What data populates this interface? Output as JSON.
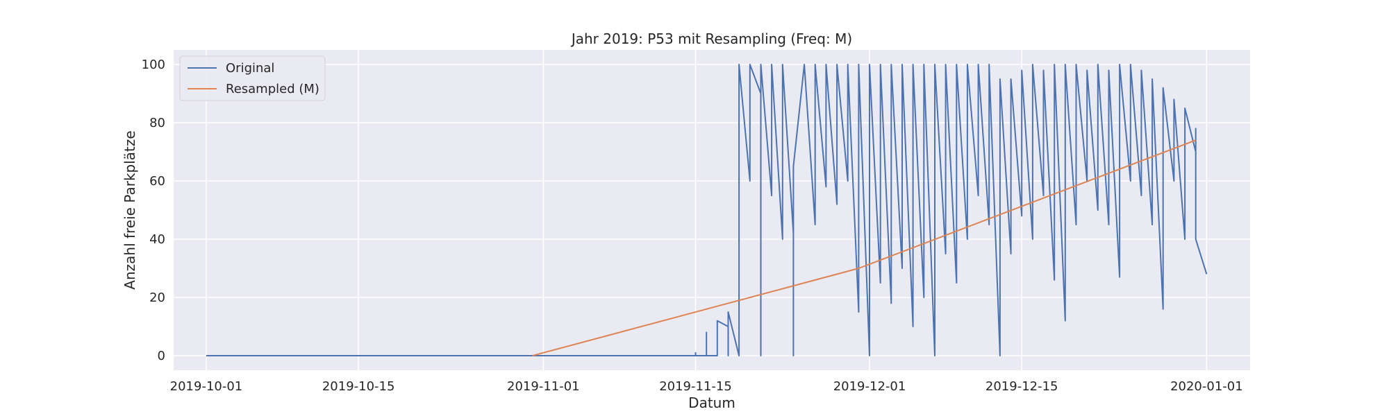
{
  "chart_data": {
    "type": "line",
    "title": "Jahr 2019: P53 mit Resampling (Freq: M)",
    "xlabel": "Datum",
    "ylabel": "Anzahl freie Parkplätze",
    "xlim": [
      "2019-09-28",
      "2020-01-05"
    ],
    "ylim": [
      -5,
      105
    ],
    "x_ticks": [
      "2019-10-01",
      "2019-10-15",
      "2019-11-01",
      "2019-11-15",
      "2019-12-01",
      "2019-12-15",
      "2020-01-01"
    ],
    "y_ticks": [
      0,
      20,
      40,
      60,
      80,
      100
    ],
    "grid": true,
    "legend": "top-left",
    "series": [
      {
        "name": "Original",
        "color": "#4c72b0",
        "points": [
          [
            "2019-10-01",
            0
          ],
          [
            "2019-11-15",
            0
          ],
          [
            "2019-11-15",
            1
          ],
          [
            "2019-11-15",
            0
          ],
          [
            "2019-11-16",
            0
          ],
          [
            "2019-11-16",
            8
          ],
          [
            "2019-11-16",
            0
          ],
          [
            "2019-11-17",
            0
          ],
          [
            "2019-11-17",
            12
          ],
          [
            "2019-11-18",
            10
          ],
          [
            "2019-11-18",
            0
          ],
          [
            "2019-11-18",
            15
          ],
          [
            "2019-11-19",
            0
          ],
          [
            "2019-11-19",
            72
          ],
          [
            "2019-11-19",
            58
          ],
          [
            "2019-11-19",
            100
          ],
          [
            "2019-11-20",
            60
          ],
          [
            "2019-11-20",
            100
          ],
          [
            "2019-11-21",
            90
          ],
          [
            "2019-11-21",
            0
          ],
          [
            "2019-11-21",
            100
          ],
          [
            "2019-11-22",
            55
          ],
          [
            "2019-11-22",
            100
          ],
          [
            "2019-11-23",
            40
          ],
          [
            "2019-11-23",
            100
          ],
          [
            "2019-11-24",
            42
          ],
          [
            "2019-11-24",
            0
          ],
          [
            "2019-11-24",
            65
          ],
          [
            "2019-11-25",
            100
          ],
          [
            "2019-11-26",
            45
          ],
          [
            "2019-11-26",
            100
          ],
          [
            "2019-11-27",
            58
          ],
          [
            "2019-11-27",
            100
          ],
          [
            "2019-11-28",
            52
          ],
          [
            "2019-11-28",
            100
          ],
          [
            "2019-11-29",
            60
          ],
          [
            "2019-11-29",
            100
          ],
          [
            "2019-11-30",
            15
          ],
          [
            "2019-11-30",
            100
          ],
          [
            "2019-12-01",
            0
          ],
          [
            "2019-12-01",
            100
          ],
          [
            "2019-12-02",
            25
          ],
          [
            "2019-12-02",
            100
          ],
          [
            "2019-12-03",
            18
          ],
          [
            "2019-12-03",
            100
          ],
          [
            "2019-12-04",
            30
          ],
          [
            "2019-12-04",
            100
          ],
          [
            "2019-12-05",
            10
          ],
          [
            "2019-12-05",
            100
          ],
          [
            "2019-12-06",
            20
          ],
          [
            "2019-12-06",
            100
          ],
          [
            "2019-12-07",
            0
          ],
          [
            "2019-12-07",
            100
          ],
          [
            "2019-12-08",
            35
          ],
          [
            "2019-12-08",
            100
          ],
          [
            "2019-12-09",
            25
          ],
          [
            "2019-12-09",
            100
          ],
          [
            "2019-12-10",
            40
          ],
          [
            "2019-12-10",
            100
          ],
          [
            "2019-12-11",
            55
          ],
          [
            "2019-12-11",
            100
          ],
          [
            "2019-12-12",
            45
          ],
          [
            "2019-12-12",
            100
          ],
          [
            "2019-12-13",
            0
          ],
          [
            "2019-12-13",
            95
          ],
          [
            "2019-12-14",
            35
          ],
          [
            "2019-12-14",
            95
          ],
          [
            "2019-12-15",
            48
          ],
          [
            "2019-12-15",
            98
          ],
          [
            "2019-12-16",
            40
          ],
          [
            "2019-12-16",
            100
          ],
          [
            "2019-12-17",
            55
          ],
          [
            "2019-12-17",
            98
          ],
          [
            "2019-12-18",
            26
          ],
          [
            "2019-12-18",
            100
          ],
          [
            "2019-12-19",
            12
          ],
          [
            "2019-12-19",
            100
          ],
          [
            "2019-12-20",
            45
          ],
          [
            "2019-12-20",
            100
          ],
          [
            "2019-12-21",
            60
          ],
          [
            "2019-12-21",
            98
          ],
          [
            "2019-12-22",
            50
          ],
          [
            "2019-12-22",
            100
          ],
          [
            "2019-12-23",
            45
          ],
          [
            "2019-12-23",
            98
          ],
          [
            "2019-12-24",
            27
          ],
          [
            "2019-12-24",
            100
          ],
          [
            "2019-12-25",
            60
          ],
          [
            "2019-12-25",
            100
          ],
          [
            "2019-12-26",
            55
          ],
          [
            "2019-12-26",
            98
          ],
          [
            "2019-12-27",
            45
          ],
          [
            "2019-12-27",
            95
          ],
          [
            "2019-12-28",
            16
          ],
          [
            "2019-12-28",
            92
          ],
          [
            "2019-12-29",
            60
          ],
          [
            "2019-12-29",
            88
          ],
          [
            "2019-12-30",
            40
          ],
          [
            "2019-12-30",
            85
          ],
          [
            "2019-12-31",
            70
          ],
          [
            "2019-12-31",
            78
          ],
          [
            "2019-12-31",
            40
          ],
          [
            "2020-01-01",
            28
          ]
        ]
      },
      {
        "name": "Resampled (M)",
        "color": "#dd8452",
        "points": [
          [
            "2019-10-31",
            0
          ],
          [
            "2019-11-30",
            30
          ],
          [
            "2019-12-31",
            74
          ]
        ]
      }
    ]
  }
}
